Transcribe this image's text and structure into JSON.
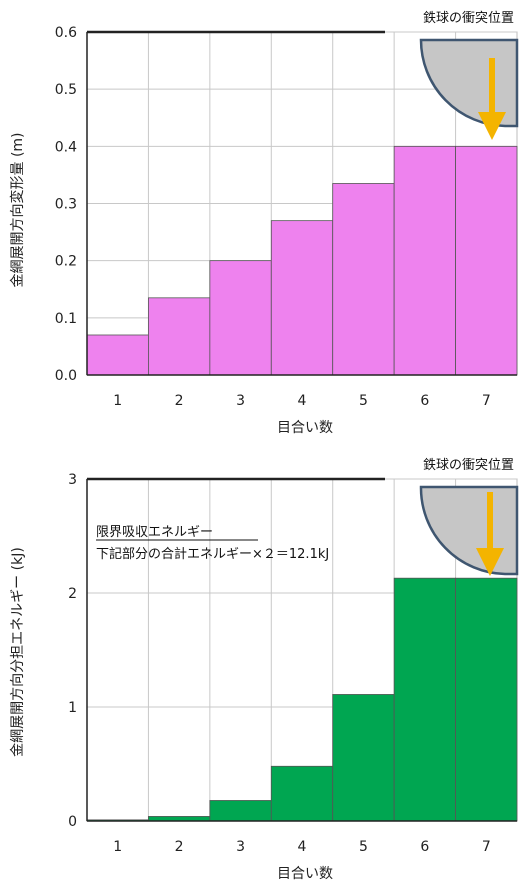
{
  "chart_data": [
    {
      "type": "bar",
      "categories": [
        "1",
        "2",
        "3",
        "4",
        "5",
        "6",
        "7"
      ],
      "values": [
        0.07,
        0.135,
        0.2,
        0.27,
        0.335,
        0.4,
        0.4
      ],
      "xlabel": "目合い数",
      "ylabel": "金網展開方向変形量 (m)",
      "ylim": [
        0,
        0.6
      ],
      "yticks": [
        "0.0",
        "0.1",
        "0.2",
        "0.3",
        "0.4",
        "0.5",
        "0.6"
      ],
      "annotation": "鉄球の衝突位置",
      "bar_color": "#ee82ee",
      "grid": true
    },
    {
      "type": "bar",
      "categories": [
        "1",
        "2",
        "3",
        "4",
        "5",
        "6",
        "7"
      ],
      "values": [
        0.01,
        0.04,
        0.18,
        0.48,
        1.11,
        2.13,
        2.13
      ],
      "xlabel": "目合い数",
      "ylabel": "金網展開方向分担エネルギー (kJ)",
      "ylim": [
        0,
        3
      ],
      "yticks": [
        "0",
        "1",
        "2",
        "3"
      ],
      "annotation": "鉄球の衝突位置",
      "note_title": "限界吸収エネルギー",
      "note_body": "下記部分の合計エネルギー×２＝12.1kJ",
      "bar_color": "#00a651",
      "grid": true
    }
  ]
}
